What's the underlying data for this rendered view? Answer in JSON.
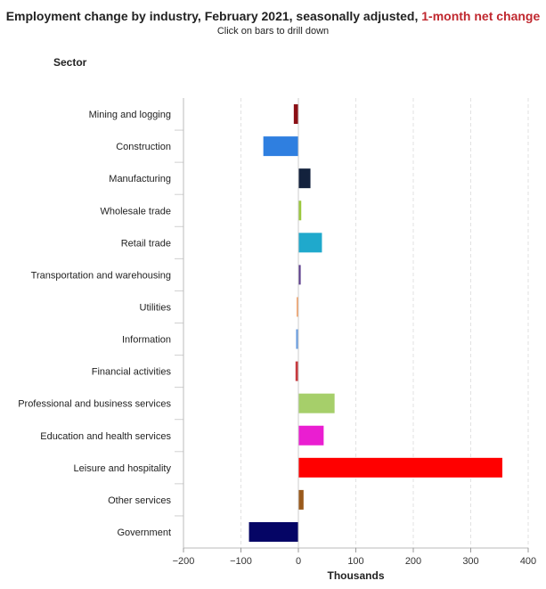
{
  "header": {
    "title_main": "Employment change by industry, February 2021, seasonally adjusted, ",
    "title_highlight": "1-month net change",
    "subtitle": "Click on bars to drill down",
    "sector_heading": "Sector"
  },
  "chart_data": {
    "type": "bar",
    "orientation": "horizontal",
    "title": "Employment change by industry, February 2021, seasonally adjusted, 1-month net change",
    "subtitle": "Click on bars to drill down",
    "xlabel": "Thousands",
    "ylabel": "Sector",
    "xlim": [
      -200,
      400
    ],
    "xticks": [
      -200,
      -100,
      0,
      100,
      200,
      300,
      400
    ],
    "xtick_labels": [
      "−200",
      "−100",
      "0",
      "100",
      "200",
      "300",
      "400"
    ],
    "grid": "vertical dashed",
    "categories": [
      "Mining and logging",
      "Construction",
      "Manufacturing",
      "Wholesale trade",
      "Retail trade",
      "Transportation and warehousing",
      "Utilities",
      "Information",
      "Financial activities",
      "Professional and business services",
      "Education and health services",
      "Leisure and hospitality",
      "Other services",
      "Government"
    ],
    "values": [
      -8,
      -61,
      21,
      5,
      41,
      4,
      -3,
      -4,
      -5,
      63,
      44,
      355,
      9,
      -86
    ],
    "colors": [
      "#8b0f15",
      "#2f7fe0",
      "#13223d",
      "#9cc83e",
      "#1fa9cc",
      "#5c3c8c",
      "#f3a064",
      "#6a9ee0",
      "#c73a3e",
      "#a6cf6a",
      "#ea1ed1",
      "#ff0000",
      "#9a5a1c",
      "#050565"
    ]
  }
}
